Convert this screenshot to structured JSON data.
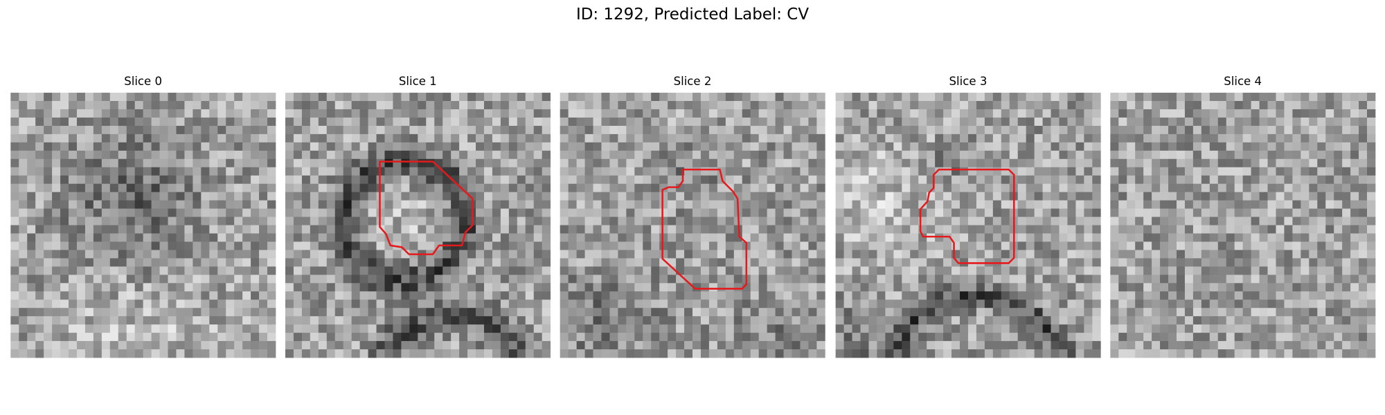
{
  "title": "ID: 1292, Predicted Label: CV",
  "panels": [
    {
      "title": "Slice 0"
    },
    {
      "title": "Slice 1"
    },
    {
      "title": "Slice 2"
    },
    {
      "title": "Slice 3"
    },
    {
      "title": "Slice 4"
    }
  ]
}
